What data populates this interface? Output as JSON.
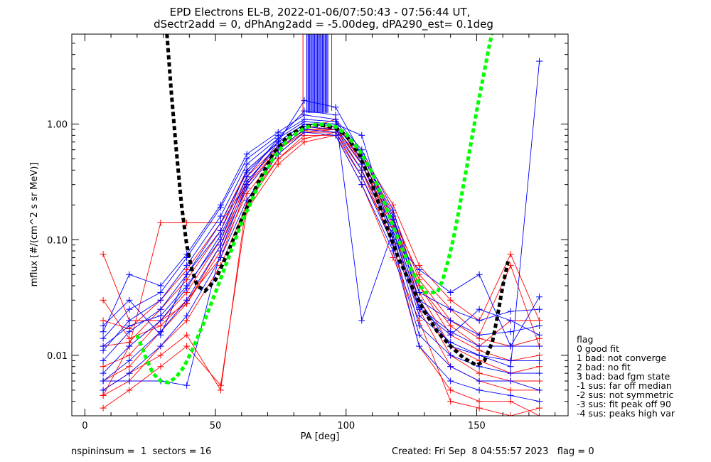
{
  "chart_data": {
    "type": "line",
    "title": "EPD Electrons EL-B, 2022-01-06/07:50:43 - 07:56:44 UT,",
    "subtitle": "dSectr2add = 0, dPhAng2add = -5.00deg, dPA290_est=   0.1deg",
    "xlabel": "PA [deg]",
    "ylabel": "mflux [#/(cm^2 s sr MeV)]",
    "xlim": [
      -5,
      185
    ],
    "ylim": [
      0.003,
      6.0
    ],
    "yscale": "log",
    "grid": false,
    "x_ticks": [
      "0",
      "50",
      "100",
      "150"
    ],
    "y_ticks": [
      {
        "value": 0.01,
        "label": "0.01"
      },
      {
        "value": 0.1,
        "label": "0.10"
      },
      {
        "value": 1.0,
        "label": "1.00"
      }
    ],
    "pa_bins": [
      7,
      17,
      29,
      39,
      52,
      62,
      74,
      84,
      96,
      106,
      118,
      128,
      140,
      151,
      163,
      174
    ],
    "sector_fill_range": [
      85,
      93
    ],
    "series": [
      {
        "color": "#ff0000",
        "profiles": [
          [
            0.0045,
            0.006,
            0.012,
            0.02,
            0.06,
            0.2,
            0.5,
            0.8,
            0.8,
            0.35,
            0.1,
            0.025,
            0.008,
            0.006,
            0.005,
            0.005
          ],
          [
            0.006,
            0.008,
            0.016,
            0.028,
            0.08,
            0.25,
            0.55,
            0.85,
            0.85,
            0.4,
            0.12,
            0.03,
            0.01,
            0.007,
            0.006,
            0.006
          ],
          [
            0.008,
            0.01,
            0.02,
            0.035,
            0.1,
            0.3,
            0.6,
            0.9,
            0.9,
            0.45,
            0.13,
            0.035,
            0.012,
            0.009,
            0.007,
            0.008
          ],
          [
            0.012,
            0.013,
            0.025,
            0.045,
            0.12,
            0.35,
            0.65,
            0.95,
            0.9,
            0.5,
            0.15,
            0.04,
            0.015,
            0.011,
            0.009,
            0.01
          ],
          [
            0.02,
            0.017,
            0.03,
            0.055,
            0.14,
            0.4,
            0.7,
            1.0,
            0.95,
            0.55,
            0.17,
            0.045,
            0.02,
            0.014,
            0.012,
            0.014
          ],
          [
            0.005,
            0.007,
            0.01,
            0.015,
            0.005,
            0.22,
            0.5,
            0.75,
            0.85,
            0.4,
            0.09,
            0.012,
            0.005,
            0.004,
            0.004,
            0.003
          ],
          [
            0.0035,
            0.005,
            0.008,
            0.012,
            0.0055,
            0.18,
            0.45,
            0.7,
            0.8,
            0.3,
            0.07,
            0.02,
            0.004,
            0.0035,
            0.003,
            0.0035
          ],
          [
            0.03,
            0.014,
            0.018,
            0.03,
            0.07,
            0.28,
            0.6,
            0.9,
            1.1,
            0.45,
            0.14,
            0.04,
            0.018,
            0.012,
            0.02,
            0.02
          ],
          [
            0.0045,
            0.012,
            0.14,
            0.14,
            0.14,
            0.3,
            0.6,
            0.85,
            0.9,
            0.5,
            0.15,
            0.05,
            0.025,
            0.015,
            0.06,
            0.012
          ],
          [
            0.075,
            0.02,
            0.02,
            0.028,
            0.09,
            0.32,
            0.62,
            0.88,
            0.95,
            0.55,
            0.2,
            0.06,
            0.03,
            0.02,
            0.075,
            0.02
          ]
        ]
      },
      {
        "color": "#0000ff",
        "profiles": [
          [
            0.005,
            0.007,
            0.012,
            0.022,
            0.07,
            0.22,
            0.55,
            0.85,
            0.8,
            0.3,
            0.08,
            0.012,
            0.006,
            0.005,
            0.0045,
            0.004
          ],
          [
            0.006,
            0.009,
            0.016,
            0.03,
            0.09,
            0.28,
            0.6,
            0.9,
            0.85,
            0.35,
            0.09,
            0.015,
            0.008,
            0.006,
            0.006,
            0.005
          ],
          [
            0.007,
            0.012,
            0.02,
            0.038,
            0.11,
            0.32,
            0.65,
            0.95,
            0.9,
            0.4,
            0.11,
            0.018,
            0.01,
            0.008,
            0.007,
            0.007
          ],
          [
            0.009,
            0.016,
            0.025,
            0.05,
            0.14,
            0.38,
            0.7,
            1.0,
            0.95,
            0.45,
            0.12,
            0.022,
            0.013,
            0.01,
            0.009,
            0.009
          ],
          [
            0.011,
            0.02,
            0.03,
            0.06,
            0.16,
            0.45,
            0.75,
            1.05,
            1.0,
            0.5,
            0.14,
            0.026,
            0.016,
            0.012,
            0.012,
            0.012
          ],
          [
            0.014,
            0.025,
            0.035,
            0.07,
            0.19,
            0.5,
            0.8,
            1.1,
            1.05,
            0.55,
            0.16,
            0.03,
            0.02,
            0.015,
            0.016,
            0.018
          ],
          [
            0.016,
            0.05,
            0.04,
            0.075,
            0.2,
            0.55,
            0.85,
            1.2,
            1.1,
            0.6,
            0.18,
            0.035,
            0.025,
            0.02,
            0.024,
            0.025
          ],
          [
            0.018,
            0.03,
            0.015,
            0.05,
            0.12,
            0.4,
            0.7,
            1.0,
            1.0,
            0.8,
            0.1,
            0.055,
            0.035,
            0.05,
            0.012,
            0.032
          ],
          [
            0.012,
            0.018,
            0.022,
            0.04,
            0.1,
            0.35,
            0.75,
            1.3,
            1.2,
            0.02,
            0.12,
            0.025,
            0.015,
            0.025,
            0.02,
            0.015
          ],
          [
            0.006,
            0.006,
            0.006,
            0.0055,
            0.08,
            0.3,
            0.7,
            1.6,
            1.4,
            0.55,
            0.15,
            0.03,
            0.012,
            0.01,
            0.008,
            3.5
          ]
        ]
      },
      {
        "color": "#000000",
        "style": "dashed-fit",
        "x": [
          31,
          33,
          35,
          37,
          39,
          41,
          43,
          46,
          50,
          55,
          60,
          66,
          72,
          78,
          84,
          88,
          92,
          96,
          100,
          105,
          110,
          115,
          120,
          125,
          130,
          135,
          140,
          145,
          150,
          153,
          156,
          158,
          160,
          162
        ],
        "values": [
          8.0,
          2.0,
          0.6,
          0.2,
          0.09,
          0.055,
          0.04,
          0.036,
          0.045,
          0.08,
          0.15,
          0.3,
          0.55,
          0.8,
          0.95,
          0.98,
          0.97,
          0.92,
          0.8,
          0.55,
          0.3,
          0.14,
          0.07,
          0.04,
          0.024,
          0.016,
          0.012,
          0.0095,
          0.0082,
          0.009,
          0.013,
          0.022,
          0.04,
          0.065
        ]
      },
      {
        "color": "#00ff00",
        "style": "dashed-fit",
        "x": [
          20,
          23,
          26,
          29,
          32,
          35,
          38,
          41,
          45,
          50,
          55,
          60,
          66,
          72,
          78,
          84,
          88,
          92,
          96,
          100,
          105,
          110,
          115,
          120,
          125,
          130,
          135,
          137,
          139,
          141,
          143,
          146,
          150,
          155,
          160
        ],
        "values": [
          0.015,
          0.01,
          0.007,
          0.006,
          0.0058,
          0.0065,
          0.008,
          0.011,
          0.018,
          0.035,
          0.07,
          0.14,
          0.28,
          0.5,
          0.75,
          0.92,
          0.99,
          1.0,
          0.95,
          0.82,
          0.6,
          0.38,
          0.2,
          0.1,
          0.055,
          0.035,
          0.035,
          0.045,
          0.065,
          0.1,
          0.17,
          0.4,
          1.3,
          5.0,
          15.0
        ]
      }
    ],
    "legend": {
      "placement": "right",
      "title": "flag",
      "entries": [
        " 0 good fit",
        " 1 bad: not converge",
        " 2 bad: no fit",
        " 3 bad: bad fgm state",
        "-1 sus: far off median",
        "-2 sus: not symmetric",
        "-3 sus: fit peak off 90",
        "-4 sus: peaks high var"
      ]
    },
    "footer": {
      "left": "nspininsum =  1  sectors = 16",
      "right": "Created: Fri Sep  8 04:55:57 2023   flag = 0"
    }
  }
}
